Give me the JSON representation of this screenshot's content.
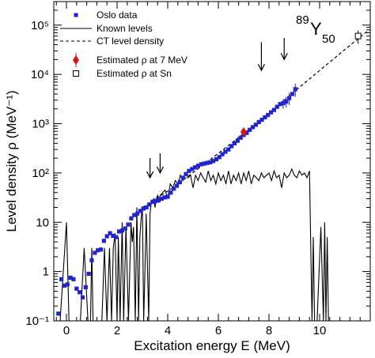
{
  "chart_data": {
    "type": "scatter",
    "xlabel": "Excitation energy E (MeV)",
    "ylabel": "Level density  ρ  (MeV⁻¹)",
    "xlim": [
      -0.5,
      12.0
    ],
    "ylim": [
      0.1,
      300000
    ],
    "y_scale": "log",
    "grid": false,
    "legend_position": "top-left",
    "x_ticks": [
      0,
      2,
      4,
      6,
      8,
      10
    ],
    "y_ticks": [
      {
        "value": 0.1,
        "label": "10⁻¹"
      },
      {
        "value": 1,
        "label": "1"
      },
      {
        "value": 10,
        "label": "10"
      },
      {
        "value": 100,
        "label": "10²"
      },
      {
        "value": 1000,
        "label": "10³"
      },
      {
        "value": 10000,
        "label": "10⁴"
      },
      {
        "value": 100000,
        "label": "10⁵"
      }
    ],
    "nucleus_label": {
      "mass": "89",
      "symbol": "Y",
      "z": "50"
    },
    "colors": {
      "oslo": "#1f23d6",
      "estimate7": "#e01010",
      "known": "#000000",
      "ct": "#000000"
    },
    "series": [
      {
        "name": "Oslo data",
        "marker": "filled-square",
        "points": [
          [
            -0.32,
            0.14
          ],
          [
            -0.2,
            0.7
          ],
          [
            -0.08,
            0.52
          ],
          [
            0.04,
            0.55
          ],
          [
            0.16,
            0.75
          ],
          [
            0.28,
            0.7
          ],
          [
            0.4,
            0.45
          ],
          [
            0.52,
            0.38
          ],
          [
            0.64,
            0.3
          ],
          [
            0.76,
            0.48
          ],
          [
            0.88,
            0.9
          ],
          [
            1.0,
            1.7
          ],
          [
            1.12,
            2.4
          ],
          [
            1.24,
            2.7
          ],
          [
            1.36,
            2.8
          ],
          [
            1.48,
            4.2
          ],
          [
            1.6,
            5.2
          ],
          [
            1.72,
            6.0
          ],
          [
            1.84,
            5.3
          ],
          [
            1.96,
            5.0
          ],
          [
            2.08,
            6.5
          ],
          [
            2.2,
            6.8
          ],
          [
            2.32,
            7.5
          ],
          [
            2.44,
            9.0
          ],
          [
            2.56,
            12
          ],
          [
            2.68,
            14
          ],
          [
            2.8,
            15
          ],
          [
            2.92,
            17
          ],
          [
            3.04,
            19
          ],
          [
            3.16,
            20
          ],
          [
            3.28,
            23
          ],
          [
            3.4,
            26
          ],
          [
            3.52,
            27
          ],
          [
            3.64,
            28
          ],
          [
            3.76,
            30
          ],
          [
            3.88,
            32
          ],
          [
            4.0,
            33
          ],
          [
            4.12,
            40
          ],
          [
            4.24,
            48
          ],
          [
            4.36,
            55
          ],
          [
            4.48,
            65
          ],
          [
            4.6,
            80
          ],
          [
            4.72,
            95
          ],
          [
            4.84,
            110
          ],
          [
            4.96,
            120
          ],
          [
            5.08,
            130
          ],
          [
            5.2,
            140
          ],
          [
            5.32,
            150
          ],
          [
            5.44,
            155
          ],
          [
            5.56,
            160
          ],
          [
            5.68,
            165
          ],
          [
            5.8,
            175
          ],
          [
            5.92,
            190
          ],
          [
            6.04,
            210
          ],
          [
            6.16,
            240
          ],
          [
            6.28,
            270
          ],
          [
            6.4,
            300
          ],
          [
            6.52,
            350
          ],
          [
            6.64,
            400
          ],
          [
            6.76,
            450
          ],
          [
            6.88,
            520
          ],
          [
            7.0,
            590
          ],
          [
            7.12,
            650
          ],
          [
            7.24,
            750
          ],
          [
            7.36,
            850
          ],
          [
            7.48,
            950
          ],
          [
            7.6,
            1080
          ],
          [
            7.72,
            1200
          ],
          [
            7.84,
            1350
          ],
          [
            7.96,
            1500
          ],
          [
            8.08,
            1700
          ],
          [
            8.2,
            1900
          ],
          [
            8.32,
            2200
          ],
          [
            8.44,
            2500
          ],
          [
            8.56,
            2600
          ],
          [
            8.68,
            2800
          ],
          [
            8.8,
            3300
          ],
          [
            8.92,
            4000
          ],
          [
            9.04,
            5000
          ]
        ]
      },
      {
        "name": "Known levels",
        "style": "solid",
        "points": [
          [
            -0.32,
            0.1
          ],
          [
            -0.25,
            0.1
          ],
          [
            0.0,
            10
          ],
          [
            0.1,
            0.1
          ],
          [
            0.55,
            0.1
          ],
          [
            0.7,
            3.0
          ],
          [
            0.85,
            0.1
          ],
          [
            0.95,
            0.1
          ],
          [
            1.0,
            3.0
          ],
          [
            1.05,
            0.1
          ],
          [
            1.4,
            0.1
          ],
          [
            1.5,
            3.0
          ],
          [
            1.6,
            0.1
          ],
          [
            1.7,
            3.0
          ],
          [
            1.78,
            0.1
          ],
          [
            1.85,
            3.0
          ],
          [
            1.92,
            6.0
          ],
          [
            2.0,
            0.1
          ],
          [
            2.05,
            5.0
          ],
          [
            2.12,
            0.1
          ],
          [
            2.2,
            10
          ],
          [
            2.26,
            0.1
          ],
          [
            2.35,
            8.0
          ],
          [
            2.45,
            0.1
          ],
          [
            2.55,
            10
          ],
          [
            2.6,
            4.0
          ],
          [
            2.65,
            8.0
          ],
          [
            2.72,
            0.1
          ],
          [
            2.78,
            20
          ],
          [
            2.85,
            0.1
          ],
          [
            2.9,
            5.0
          ],
          [
            2.95,
            12
          ],
          [
            3.0,
            20
          ],
          [
            3.05,
            0.1
          ],
          [
            3.1,
            1.0
          ],
          [
            3.15,
            15
          ],
          [
            3.25,
            0.1
          ],
          [
            3.3,
            15
          ],
          [
            3.35,
            25
          ],
          [
            3.45,
            30
          ],
          [
            3.5,
            20
          ],
          [
            3.55,
            30
          ],
          [
            3.6,
            35
          ],
          [
            3.65,
            25
          ],
          [
            3.7,
            35
          ],
          [
            3.8,
            40
          ],
          [
            3.9,
            45
          ],
          [
            4.0,
            30
          ],
          [
            4.1,
            60
          ],
          [
            4.2,
            50
          ],
          [
            4.3,
            70
          ],
          [
            4.4,
            60
          ],
          [
            4.5,
            90
          ],
          [
            4.6,
            70
          ],
          [
            4.7,
            100
          ],
          [
            4.8,
            80
          ],
          [
            4.9,
            90
          ],
          [
            5.0,
            50
          ],
          [
            5.1,
            90
          ],
          [
            5.2,
            70
          ],
          [
            5.3,
            100
          ],
          [
            5.4,
            80
          ],
          [
            5.5,
            65
          ],
          [
            5.6,
            110
          ],
          [
            5.7,
            70
          ],
          [
            5.8,
            90
          ],
          [
            5.9,
            60
          ],
          [
            6.0,
            100
          ],
          [
            6.1,
            70
          ],
          [
            6.2,
            90
          ],
          [
            6.3,
            60
          ],
          [
            6.4,
            110
          ],
          [
            6.5,
            60
          ],
          [
            6.6,
            90
          ],
          [
            6.7,
            70
          ],
          [
            6.8,
            100
          ],
          [
            6.9,
            60
          ],
          [
            7.0,
            100
          ],
          [
            7.1,
            70
          ],
          [
            7.2,
            110
          ],
          [
            7.3,
            60
          ],
          [
            7.4,
            90
          ],
          [
            7.5,
            80
          ],
          [
            7.6,
            70
          ],
          [
            7.7,
            100
          ],
          [
            7.8,
            80
          ],
          [
            7.9,
            90
          ],
          [
            8.0,
            100
          ],
          [
            8.1,
            70
          ],
          [
            8.2,
            110
          ],
          [
            8.3,
            80
          ],
          [
            8.4,
            90
          ],
          [
            8.5,
            50
          ],
          [
            8.6,
            100
          ],
          [
            8.7,
            80
          ],
          [
            8.8,
            90
          ],
          [
            8.9,
            120
          ],
          [
            9.0,
            90
          ],
          [
            9.1,
            80
          ],
          [
            9.2,
            110
          ],
          [
            9.3,
            90
          ],
          [
            9.4,
            100
          ],
          [
            9.5,
            80
          ],
          [
            9.6,
            110
          ],
          [
            9.7,
            0.1
          ],
          [
            9.75,
            5.0
          ],
          [
            9.8,
            0.1
          ],
          [
            9.9,
            0.1
          ],
          [
            10.05,
            8.0
          ],
          [
            10.15,
            0.1
          ],
          [
            10.2,
            10
          ],
          [
            10.25,
            0.1
          ],
          [
            10.3,
            5.0
          ],
          [
            10.35,
            0.1
          ],
          [
            10.4,
            0.1
          ]
        ]
      },
      {
        "name": "CT level density",
        "style": "dashed",
        "points": [
          [
            3.0,
            20
          ],
          [
            4.2,
            50
          ],
          [
            6.0,
            250
          ],
          [
            8.0,
            1600
          ],
          [
            9.0,
            4500
          ],
          [
            10.0,
            12000
          ],
          [
            11.0,
            32000
          ],
          [
            11.95,
            80000
          ]
        ]
      },
      {
        "name": "Estimated  ρ at 7 MeV",
        "marker": "filled-diamond",
        "points": [
          [
            7.0,
            680
          ]
        ],
        "error": [
          150
        ]
      },
      {
        "name": "Estimated  ρ at Sn",
        "marker": "open-square",
        "points": [
          [
            11.52,
            60000
          ]
        ],
        "error": [
          18000
        ]
      }
    ],
    "error_bars": [
      {
        "x": 8.56,
        "y": 2600,
        "err": 600
      },
      {
        "x": 8.68,
        "y": 2800,
        "err": 700
      },
      {
        "x": 8.8,
        "y": 3300,
        "err": 900
      },
      {
        "x": 9.04,
        "y": 5000,
        "err": 1500
      }
    ],
    "arrows": [
      {
        "x": 3.3,
        "y_top": 200,
        "y_tip": 80
      },
      {
        "x": 3.7,
        "y_top": 250,
        "y_tip": 100
      },
      {
        "x": 7.7,
        "y_top": 45000,
        "y_tip": 12000
      },
      {
        "x": 8.6,
        "y_top": 55000,
        "y_tip": 20000
      }
    ]
  }
}
